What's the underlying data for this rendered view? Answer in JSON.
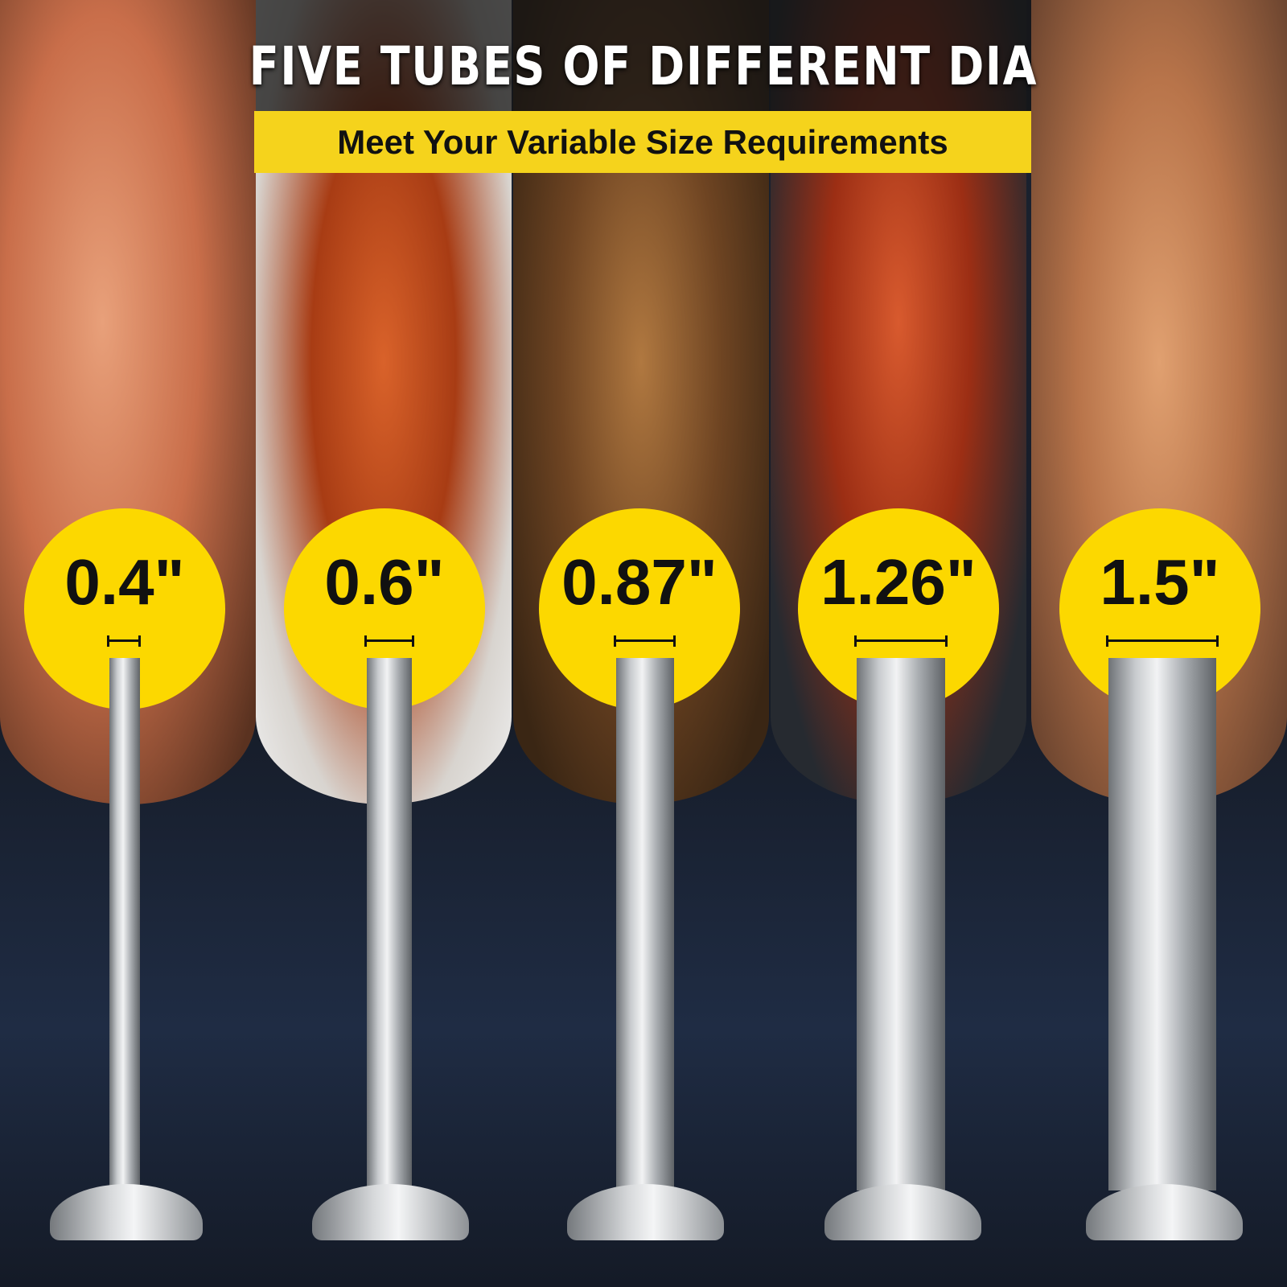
{
  "title": "FIVE TUBES OF DIFFERENT DIA",
  "subtitle": "Meet Your Variable Size Requirements",
  "tubes": [
    {
      "label": "0.4\""
    },
    {
      "label": "0.6\""
    },
    {
      "label": "0.87\""
    },
    {
      "label": "1.26\""
    },
    {
      "label": "1.5\""
    }
  ],
  "colors": {
    "accent": "#fcd800",
    "background": "#1a2130"
  }
}
